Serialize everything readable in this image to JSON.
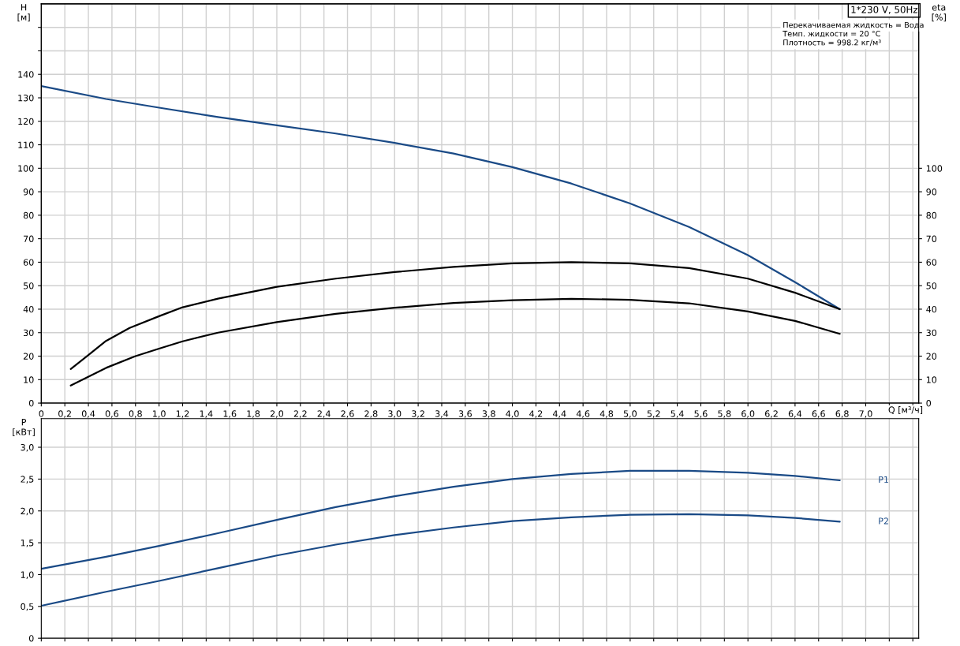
{
  "chart_data": [
    {
      "type": "line",
      "title": "1*230 V, 50Hz",
      "xlabel": "Q [м³/ч]",
      "ylabel": "H\n[м]",
      "y2label": "eta\n[%]",
      "annotations": [
        "Перекачиваемая жидкость = Вода",
        "Темп. жидкости = 20 °C",
        "Плотность = 998.2 кг/м³"
      ],
      "series": [
        {
          "color": "#1a4a86",
          "x": [
            0,
            0.55,
            1.0,
            1.5,
            2.0,
            2.5,
            3.0,
            3.5,
            4.0,
            4.5,
            5.0,
            5.5,
            6.0,
            6.4,
            6.78
          ],
          "values": [
            135,
            129.5,
            125.8,
            121.8,
            118.3,
            114.8,
            110.8,
            106.3,
            100.5,
            93.5,
            85,
            75,
            63,
            51.5,
            40
          ]
        },
        {
          "color": "#000000",
          "axis": "y2",
          "x": [
            0.25,
            0.4,
            0.55,
            0.75,
            1.0,
            1.2,
            1.5,
            2.0,
            2.5,
            3.0,
            3.5,
            4.0,
            4.5,
            5.0,
            5.5,
            6.0,
            6.4,
            6.78
          ],
          "values": [
            14.5,
            20.5,
            26.5,
            32,
            37,
            40.8,
            44.5,
            49.5,
            53,
            55.8,
            58,
            59.5,
            60,
            59.5,
            57.5,
            53,
            47,
            40
          ]
        },
        {
          "color": "#000000",
          "axis": "y2",
          "x": [
            0.25,
            0.55,
            0.8,
            1.0,
            1.2,
            1.5,
            2.0,
            2.5,
            3.0,
            3.5,
            4.0,
            4.5,
            5.0,
            5.5,
            6.0,
            6.4,
            6.78
          ],
          "values": [
            7.5,
            15,
            20,
            23.2,
            26.3,
            30,
            34.5,
            38,
            40.6,
            42.6,
            43.8,
            44.4,
            44,
            42.5,
            39,
            35,
            29.5
          ]
        }
      ],
      "xlim": [
        0,
        7.45
      ],
      "xticks": [
        0,
        {
          "value": 0.2,
          "label": "0,2"
        },
        {
          "value": 0.4,
          "label": "0,4"
        },
        {
          "value": 0.6,
          "label": "0,6"
        },
        {
          "value": 0.8,
          "label": "0,8"
        },
        {
          "value": 1.0,
          "label": "1,0"
        },
        {
          "value": 1.2,
          "label": "1,2"
        },
        {
          "value": 1.4,
          "label": "1,4"
        },
        {
          "value": 1.6,
          "label": "1,6"
        },
        {
          "value": 1.8,
          "label": "1,8"
        },
        {
          "value": 2.0,
          "label": "2,0"
        },
        {
          "value": 2.2,
          "label": "2,2"
        },
        {
          "value": 2.4,
          "label": "2,4"
        },
        {
          "value": 2.6,
          "label": "2,6"
        },
        {
          "value": 2.8,
          "label": "2,8"
        },
        {
          "value": 3.0,
          "label": "3,0"
        },
        {
          "value": 3.2,
          "label": "3,2"
        },
        {
          "value": 3.4,
          "label": "3,4"
        },
        {
          "value": 3.6,
          "label": "3,6"
        },
        {
          "value": 3.8,
          "label": "3,8"
        },
        {
          "value": 4.0,
          "label": "4,0"
        },
        {
          "value": 4.2,
          "label": "4,2"
        },
        {
          "value": 4.4,
          "label": "4,4"
        },
        {
          "value": 4.6,
          "label": "4,6"
        },
        {
          "value": 4.8,
          "label": "4,8"
        },
        {
          "value": 5.0,
          "label": "5,0"
        },
        {
          "value": 5.2,
          "label": "5,2"
        },
        {
          "value": 5.4,
          "label": "5,4"
        },
        {
          "value": 5.6,
          "label": "5,6"
        },
        {
          "value": 5.8,
          "label": "5,8"
        },
        {
          "value": 6.0,
          "label": "6,0"
        },
        {
          "value": 6.2,
          "label": "6,2"
        },
        {
          "value": 6.4,
          "label": "6,4"
        },
        {
          "value": 6.6,
          "label": "6,6"
        },
        {
          "value": 6.8,
          "label": "6,8"
        },
        {
          "value": 7.0,
          "label": "7,0"
        },
        {
          "value": 7.2,
          "label": null
        },
        {
          "value": 7.4,
          "label": null
        }
      ],
      "ylim": [
        0,
        170
      ],
      "yticks": [
        0,
        10,
        20,
        30,
        40,
        50,
        60,
        70,
        80,
        90,
        100,
        110,
        120,
        130,
        140,
        {
          "value": 150,
          "label": null
        },
        {
          "value": 160,
          "label": null
        }
      ],
      "y2lim": [
        0,
        170
      ],
      "y2ticks": [
        0,
        10,
        20,
        30,
        40,
        50,
        60,
        70,
        80,
        90,
        100
      ],
      "grid": true,
      "legend": false,
      "marker": "none",
      "line_style": "solid"
    },
    {
      "type": "line",
      "ylabel": "P\n[кВт]",
      "series": [
        {
          "name": "P1",
          "color": "#1a4a86",
          "x": [
            0,
            0.55,
            1.0,
            1.5,
            2.0,
            2.5,
            3.0,
            3.5,
            4.0,
            4.5,
            5.0,
            5.5,
            6.0,
            6.4,
            6.78
          ],
          "values": [
            1.09,
            1.28,
            1.45,
            1.65,
            1.86,
            2.06,
            2.23,
            2.38,
            2.5,
            2.58,
            2.63,
            2.63,
            2.6,
            2.55,
            2.48
          ]
        },
        {
          "name": "P2",
          "color": "#1a4a86",
          "x": [
            0,
            0.55,
            1.0,
            1.5,
            2.0,
            2.5,
            3.0,
            3.5,
            4.0,
            4.5,
            5.0,
            5.5,
            6.0,
            6.4,
            6.78
          ],
          "values": [
            0.51,
            0.73,
            0.9,
            1.1,
            1.3,
            1.47,
            1.62,
            1.74,
            1.84,
            1.9,
            1.94,
            1.95,
            1.93,
            1.89,
            1.83
          ]
        }
      ],
      "xlim": [
        0,
        7.45
      ],
      "xticks": [
        0,
        0.2,
        0.4,
        0.6,
        0.8,
        1.0,
        1.2,
        1.4,
        1.6,
        1.8,
        2.0,
        2.2,
        2.4,
        2.6,
        2.8,
        3.0,
        3.2,
        3.4,
        3.6,
        3.8,
        4.0,
        4.2,
        4.4,
        4.6,
        4.8,
        5.0,
        5.2,
        5.4,
        5.6,
        5.8,
        6.0,
        6.2,
        6.4,
        6.6,
        6.8,
        7.0,
        7.2,
        7.4
      ],
      "ylim": [
        0,
        3.45
      ],
      "yticks": [
        0,
        {
          "value": 0.5,
          "label": "0,5"
        },
        {
          "value": 1.0,
          "label": "1,0"
        },
        {
          "value": 1.5,
          "label": "1,5"
        },
        {
          "value": 2.0,
          "label": "2,0"
        },
        {
          "value": 2.5,
          "label": "2,5"
        },
        {
          "value": 3.0,
          "label": "3,0"
        }
      ],
      "tick_labels": "y",
      "grid": true,
      "legend": false,
      "marker": "none",
      "line_style": "solid"
    }
  ]
}
